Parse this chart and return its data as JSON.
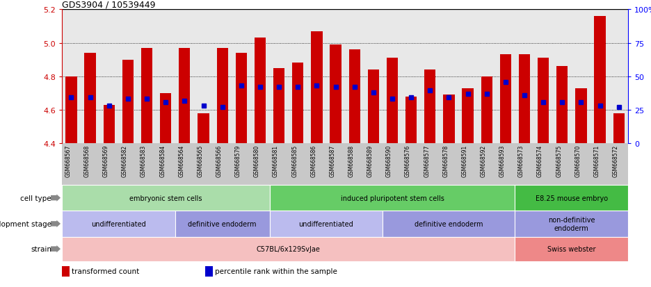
{
  "title": "GDS3904 / 10539449",
  "samples": [
    "GSM668567",
    "GSM668568",
    "GSM668569",
    "GSM668582",
    "GSM668583",
    "GSM668584",
    "GSM668564",
    "GSM668565",
    "GSM668566",
    "GSM668579",
    "GSM668580",
    "GSM668581",
    "GSM668585",
    "GSM668586",
    "GSM668587",
    "GSM668588",
    "GSM668589",
    "GSM668590",
    "GSM668576",
    "GSM668577",
    "GSM668578",
    "GSM668591",
    "GSM668592",
    "GSM668593",
    "GSM668573",
    "GSM668574",
    "GSM668575",
    "GSM668570",
    "GSM668571",
    "GSM668572"
  ],
  "bar_values": [
    4.8,
    4.94,
    4.63,
    4.9,
    4.97,
    4.7,
    4.97,
    4.58,
    4.97,
    4.94,
    5.03,
    4.85,
    4.88,
    5.07,
    4.99,
    4.96,
    4.84,
    4.91,
    4.68,
    4.84,
    4.69,
    4.73,
    4.8,
    4.93,
    4.93,
    4.91,
    4.86,
    4.73,
    5.16,
    4.58
  ],
  "percentile_values": [
    4.675,
    4.675,
    4.625,
    4.665,
    4.665,
    4.645,
    4.655,
    4.625,
    4.615,
    4.745,
    4.735,
    4.735,
    4.735,
    4.745,
    4.735,
    4.735,
    4.705,
    4.665,
    4.675,
    4.715,
    4.675,
    4.695,
    4.695,
    4.765,
    4.685,
    4.645,
    4.645,
    4.645,
    4.625,
    4.615
  ],
  "ylim": [
    4.4,
    5.2
  ],
  "yticks": [
    4.4,
    4.6,
    4.8,
    5.0,
    5.2
  ],
  "right_yticks": [
    0,
    25,
    50,
    75,
    100
  ],
  "right_ytick_labels": [
    "0",
    "25",
    "50",
    "75",
    "100%"
  ],
  "bar_color": "#cc0000",
  "percentile_color": "#0000cc",
  "background_color": "#e8e8e8",
  "tick_area_color": "#c8c8c8",
  "cell_type_groups": [
    {
      "label": "embryonic stem cells",
      "start": 0,
      "end": 11,
      "color": "#aaddaa"
    },
    {
      "label": "induced pluripotent stem cells",
      "start": 11,
      "end": 24,
      "color": "#66cc66"
    },
    {
      "label": "E8.25 mouse embryo",
      "start": 24,
      "end": 30,
      "color": "#44bb44"
    }
  ],
  "dev_stage_groups": [
    {
      "label": "undifferentiated",
      "start": 0,
      "end": 6,
      "color": "#bbbbee"
    },
    {
      "label": "definitive endoderm",
      "start": 6,
      "end": 11,
      "color": "#9999dd"
    },
    {
      "label": "undifferentiated",
      "start": 11,
      "end": 17,
      "color": "#bbbbee"
    },
    {
      "label": "definitive endoderm",
      "start": 17,
      "end": 24,
      "color": "#9999dd"
    },
    {
      "label": "non-definitive\nendoderm",
      "start": 24,
      "end": 30,
      "color": "#9999dd"
    }
  ],
  "strain_groups": [
    {
      "label": "C57BL/6x129SvJae",
      "start": 0,
      "end": 24,
      "color": "#f5c0c0"
    },
    {
      "label": "Swiss webster",
      "start": 24,
      "end": 30,
      "color": "#ee8888"
    }
  ],
  "legend_items": [
    {
      "label": "transformed count",
      "color": "#cc0000"
    },
    {
      "label": "percentile rank within the sample",
      "color": "#0000cc"
    }
  ],
  "row_labels": [
    "cell type",
    "development stage",
    "strain"
  ]
}
